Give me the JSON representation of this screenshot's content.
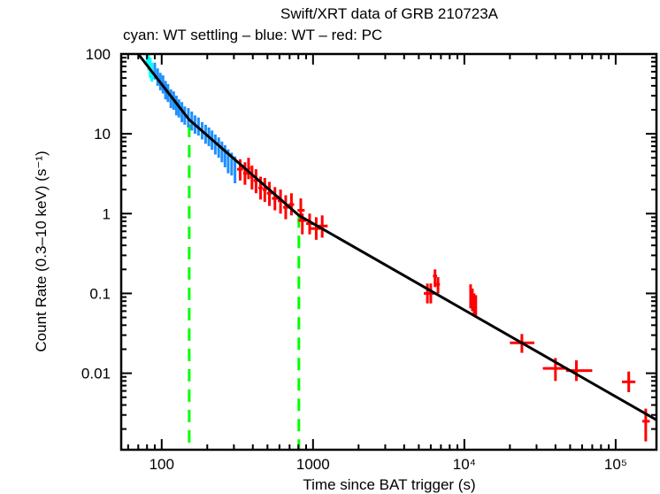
{
  "chart_data": {
    "type": "scatter",
    "title": "Swift/XRT data of GRB 210723A",
    "subtitle": "cyan: WT settling – blue: WT – red: PC",
    "xlabel": "Time since BAT trigger (s)",
    "ylabel": "Count Rate (0.3–10 keV) (s⁻¹)",
    "xscale": "log",
    "yscale": "log",
    "xlim": [
      54,
      186000
    ],
    "ylim": [
      0.0011,
      100
    ],
    "x_ticks": [
      {
        "value": 100,
        "label": "100"
      },
      {
        "value": 1000,
        "label": "1000"
      },
      {
        "value": 10000,
        "label": "10⁴"
      },
      {
        "value": 100000,
        "label": "10⁵"
      }
    ],
    "y_ticks": [
      {
        "value": 100,
        "label": "100"
      },
      {
        "value": 10,
        "label": "10"
      },
      {
        "value": 1,
        "label": "1"
      },
      {
        "value": 0.1,
        "label": "0.1"
      },
      {
        "value": 0.01,
        "label": "0.01"
      }
    ],
    "colors": {
      "wt_settling": "#00ffff",
      "wt": "#1e90ff",
      "pc": "#ff0000",
      "model": "#000000",
      "breaks": "#00ff00"
    },
    "series": [
      {
        "name": "WT settling",
        "color_key": "wt_settling",
        "points": [
          {
            "t": 80,
            "rate": 95,
            "t_lo": 79,
            "t_hi": 81,
            "r_lo": 75,
            "r_hi": 110
          },
          {
            "t": 82,
            "rate": 80,
            "t_lo": 81,
            "t_hi": 83,
            "r_lo": 62,
            "r_hi": 100
          },
          {
            "t": 84,
            "rate": 70,
            "t_lo": 83,
            "t_hi": 85,
            "r_lo": 50,
            "r_hi": 90
          },
          {
            "t": 86,
            "rate": 60,
            "t_lo": 85,
            "t_hi": 87,
            "r_lo": 45,
            "r_hi": 78
          }
        ]
      },
      {
        "name": "WT",
        "color_key": "wt",
        "points": [
          {
            "t": 90,
            "rate": 62,
            "t_lo": 89,
            "t_hi": 91,
            "r_lo": 48,
            "r_hi": 78
          },
          {
            "t": 94,
            "rate": 52,
            "t_lo": 93,
            "t_hi": 95,
            "r_lo": 40,
            "r_hi": 66
          },
          {
            "t": 98,
            "rate": 46,
            "t_lo": 97,
            "t_hi": 99,
            "r_lo": 35,
            "r_hi": 58
          },
          {
            "t": 102,
            "rate": 42,
            "t_lo": 101,
            "t_hi": 103,
            "r_lo": 32,
            "r_hi": 54
          },
          {
            "t": 106,
            "rate": 36,
            "t_lo": 105,
            "t_hi": 107,
            "r_lo": 27,
            "r_hi": 46
          },
          {
            "t": 110,
            "rate": 33,
            "t_lo": 109,
            "t_hi": 111,
            "r_lo": 25,
            "r_hi": 42
          },
          {
            "t": 115,
            "rate": 28,
            "t_lo": 114,
            "t_hi": 116,
            "r_lo": 21,
            "r_hi": 36
          },
          {
            "t": 120,
            "rate": 27,
            "t_lo": 119,
            "t_hi": 121,
            "r_lo": 20,
            "r_hi": 34
          },
          {
            "t": 125,
            "rate": 23,
            "t_lo": 124,
            "t_hi": 126,
            "r_lo": 17,
            "r_hi": 30
          },
          {
            "t": 130,
            "rate": 21,
            "t_lo": 129,
            "t_hi": 131,
            "r_lo": 16,
            "r_hi": 27
          },
          {
            "t": 136,
            "rate": 19,
            "t_lo": 135,
            "t_hi": 137,
            "r_lo": 14,
            "r_hi": 25
          },
          {
            "t": 142,
            "rate": 17,
            "t_lo": 141,
            "t_hi": 143,
            "r_lo": 13,
            "r_hi": 22
          },
          {
            "t": 150,
            "rate": 16,
            "t_lo": 149,
            "t_hi": 151,
            "r_lo": 12,
            "r_hi": 21
          },
          {
            "t": 158,
            "rate": 15,
            "t_lo": 157,
            "t_hi": 159,
            "r_lo": 11,
            "r_hi": 19
          },
          {
            "t": 166,
            "rate": 13.5,
            "t_lo": 165,
            "t_hi": 167,
            "r_lo": 10,
            "r_hi": 17
          },
          {
            "t": 175,
            "rate": 12.5,
            "t_lo": 174,
            "t_hi": 176,
            "r_lo": 9.5,
            "r_hi": 16
          },
          {
            "t": 185,
            "rate": 11,
            "t_lo": 184,
            "t_hi": 186,
            "r_lo": 8.5,
            "r_hi": 14
          },
          {
            "t": 195,
            "rate": 10,
            "t_lo": 194,
            "t_hi": 196,
            "r_lo": 7.5,
            "r_hi": 13
          },
          {
            "t": 205,
            "rate": 9.2,
            "t_lo": 204,
            "t_hi": 206,
            "r_lo": 7,
            "r_hi": 12
          },
          {
            "t": 215,
            "rate": 8.3,
            "t_lo": 214,
            "t_hi": 216,
            "r_lo": 6.3,
            "r_hi": 11
          },
          {
            "t": 226,
            "rate": 7.4,
            "t_lo": 225,
            "t_hi": 227,
            "r_lo": 5.5,
            "r_hi": 9.8
          },
          {
            "t": 238,
            "rate": 6.8,
            "t_lo": 237,
            "t_hi": 239,
            "r_lo": 5,
            "r_hi": 9
          },
          {
            "t": 250,
            "rate": 6.0,
            "t_lo": 249,
            "t_hi": 251,
            "r_lo": 4.4,
            "r_hi": 8
          },
          {
            "t": 262,
            "rate": 5.3,
            "t_lo": 261,
            "t_hi": 263,
            "r_lo": 3.8,
            "r_hi": 7.2
          },
          {
            "t": 275,
            "rate": 4.6,
            "t_lo": 274,
            "t_hi": 276,
            "r_lo": 3.2,
            "r_hi": 6.4
          },
          {
            "t": 290,
            "rate": 4.2,
            "t_lo": 289,
            "t_hi": 291,
            "r_lo": 3,
            "r_hi": 5.8
          },
          {
            "t": 305,
            "rate": 3.8,
            "t_lo": 304,
            "t_hi": 306,
            "r_lo": 2.4,
            "r_hi": 5.2
          }
        ]
      },
      {
        "name": "PC",
        "color_key": "pc",
        "points": [
          {
            "t": 330,
            "rate": 3.6,
            "t_lo": 315,
            "t_hi": 345,
            "r_lo": 2.6,
            "r_hi": 4.8
          },
          {
            "t": 355,
            "rate": 3.2,
            "t_lo": 345,
            "t_hi": 368,
            "r_lo": 2.3,
            "r_hi": 4.4
          },
          {
            "t": 375,
            "rate": 3.7,
            "t_lo": 368,
            "t_hi": 385,
            "r_lo": 2.7,
            "r_hi": 5.0
          },
          {
            "t": 395,
            "rate": 2.9,
            "t_lo": 385,
            "t_hi": 405,
            "r_lo": 2.0,
            "r_hi": 4.0
          },
          {
            "t": 420,
            "rate": 2.6,
            "t_lo": 405,
            "t_hi": 435,
            "r_lo": 1.8,
            "r_hi": 3.6
          },
          {
            "t": 450,
            "rate": 2.1,
            "t_lo": 435,
            "t_hi": 465,
            "r_lo": 1.5,
            "r_hi": 2.9
          },
          {
            "t": 480,
            "rate": 2.0,
            "t_lo": 465,
            "t_hi": 495,
            "r_lo": 1.4,
            "r_hi": 2.8
          },
          {
            "t": 515,
            "rate": 1.8,
            "t_lo": 495,
            "t_hi": 535,
            "r_lo": 1.25,
            "r_hi": 2.5
          },
          {
            "t": 560,
            "rate": 1.55,
            "t_lo": 535,
            "t_hi": 585,
            "r_lo": 1.1,
            "r_hi": 2.15
          },
          {
            "t": 610,
            "rate": 1.45,
            "t_lo": 585,
            "t_hi": 635,
            "r_lo": 1.0,
            "r_hi": 2.0
          },
          {
            "t": 660,
            "rate": 1.2,
            "t_lo": 635,
            "t_hi": 690,
            "r_lo": 0.85,
            "r_hi": 1.7
          },
          {
            "t": 720,
            "rate": 1.3,
            "t_lo": 690,
            "t_hi": 750,
            "r_lo": 0.95,
            "r_hi": 1.8
          },
          {
            "t": 830,
            "rate": 1.1,
            "t_lo": 790,
            "t_hi": 880,
            "r_lo": 0.8,
            "r_hi": 1.55
          },
          {
            "t": 850,
            "rate": 0.82,
            "t_lo": 800,
            "t_hi": 900,
            "r_lo": 0.55,
            "r_hi": 1.0
          },
          {
            "t": 950,
            "rate": 0.75,
            "t_lo": 900,
            "t_hi": 1010,
            "r_lo": 0.55,
            "r_hi": 1.0
          },
          {
            "t": 1050,
            "rate": 0.65,
            "t_lo": 960,
            "t_hi": 1120,
            "r_lo": 0.47,
            "r_hi": 0.9
          },
          {
            "t": 1150,
            "rate": 0.7,
            "t_lo": 1080,
            "t_hi": 1250,
            "r_lo": 0.5,
            "r_hi": 0.95
          },
          {
            "t": 5700,
            "rate": 0.1,
            "t_lo": 5400,
            "t_hi": 6000,
            "r_lo": 0.075,
            "r_hi": 0.133
          },
          {
            "t": 6000,
            "rate": 0.1,
            "t_lo": 5700,
            "t_hi": 6300,
            "r_lo": 0.075,
            "r_hi": 0.133
          },
          {
            "t": 6400,
            "rate": 0.165,
            "t_lo": 6200,
            "t_hi": 6600,
            "r_lo": 0.12,
            "r_hi": 0.2
          },
          {
            "t": 6700,
            "rate": 0.13,
            "t_lo": 6500,
            "t_hi": 6900,
            "r_lo": 0.1,
            "r_hi": 0.16
          },
          {
            "t": 11000,
            "rate": 0.1,
            "t_lo": 10800,
            "t_hi": 11200,
            "r_lo": 0.065,
            "r_hi": 0.13
          },
          {
            "t": 11300,
            "rate": 0.085,
            "t_lo": 11100,
            "t_hi": 11500,
            "r_lo": 0.06,
            "r_hi": 0.115
          },
          {
            "t": 11600,
            "rate": 0.075,
            "t_lo": 11400,
            "t_hi": 11800,
            "r_lo": 0.055,
            "r_hi": 0.1
          },
          {
            "t": 11900,
            "rate": 0.07,
            "t_lo": 11700,
            "t_hi": 12100,
            "r_lo": 0.05,
            "r_hi": 0.095
          },
          {
            "t": 24000,
            "rate": 0.024,
            "t_lo": 20000,
            "t_hi": 29000,
            "r_lo": 0.018,
            "r_hi": 0.031
          },
          {
            "t": 40000,
            "rate": 0.0115,
            "t_lo": 33000,
            "t_hi": 48000,
            "r_lo": 0.008,
            "r_hi": 0.0155
          },
          {
            "t": 55000,
            "rate": 0.0108,
            "t_lo": 47000,
            "t_hi": 70000,
            "r_lo": 0.008,
            "r_hi": 0.0145
          },
          {
            "t": 122000,
            "rate": 0.0078,
            "t_lo": 110000,
            "t_hi": 135000,
            "r_lo": 0.0058,
            "r_hi": 0.0105
          },
          {
            "t": 158000,
            "rate": 0.0025,
            "t_lo": 150000,
            "t_hi": 168000,
            "r_lo": 0.0014,
            "r_hi": 0.0036
          }
        ]
      }
    ],
    "model": {
      "name": "broken power-law fit",
      "points": [
        {
          "t": 70,
          "rate": 100
        },
        {
          "t": 152,
          "rate": 15
        },
        {
          "t": 806,
          "rate": 0.95
        },
        {
          "t": 186000,
          "rate": 0.0026
        }
      ]
    },
    "breaks": [
      {
        "t": 152,
        "from_rate": 13
      },
      {
        "t": 806,
        "from_rate": 0.95
      }
    ]
  }
}
